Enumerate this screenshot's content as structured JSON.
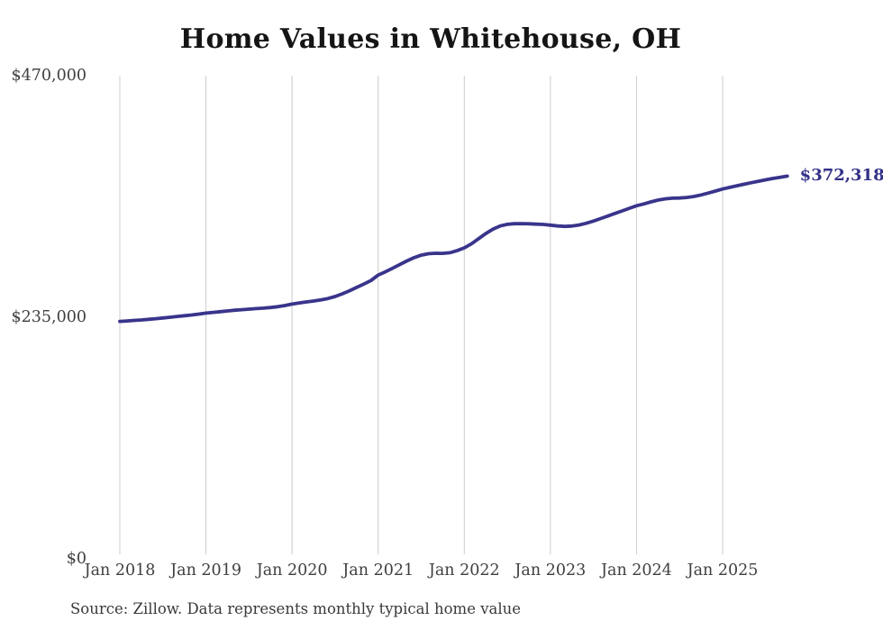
{
  "title": "Home Values in Whitehouse, OH",
  "end_value_label": "$372,318",
  "source_note": "Source: Zillow. Data represents monthly typical home value",
  "colors": {
    "background": "#ffffff",
    "title": "#151515",
    "axis_text": "#3f3f3f",
    "gridline": "#cccccc",
    "line": "#39348b",
    "end_label": "#333188",
    "source_text": "#3a3a3a"
  },
  "y_axis": {
    "min": 0,
    "max": 470000,
    "ticks": [
      {
        "label": "$470,000",
        "value": 470000
      },
      {
        "label": "$235,000",
        "value": 235000
      },
      {
        "label": "$0",
        "value": 0
      }
    ]
  },
  "x_axis": {
    "ticks": [
      "Jan 2018",
      "Jan 2019",
      "Jan 2020",
      "Jan 2021",
      "Jan 2022",
      "Jan 2023",
      "Jan 2024",
      "Jan 2025"
    ]
  },
  "chart_data": {
    "type": "line",
    "title": "Home Values in Whitehouse, OH",
    "xlabel": "",
    "ylabel": "",
    "ylim": [
      0,
      470000
    ],
    "grid": "vertical-only",
    "legend": "none",
    "x": [
      "Jan 2018",
      "Feb 2018",
      "Mar 2018",
      "Apr 2018",
      "May 2018",
      "Jun 2018",
      "Jul 2018",
      "Aug 2018",
      "Sep 2018",
      "Oct 2018",
      "Nov 2018",
      "Dec 2018",
      "Jan 2019",
      "Feb 2019",
      "Mar 2019",
      "Apr 2019",
      "May 2019",
      "Jun 2019",
      "Jul 2019",
      "Aug 2019",
      "Sep 2019",
      "Oct 2019",
      "Nov 2019",
      "Dec 2019",
      "Jan 2020",
      "Feb 2020",
      "Mar 2020",
      "Apr 2020",
      "May 2020",
      "Jun 2020",
      "Jul 2020",
      "Aug 2020",
      "Sep 2020",
      "Oct 2020",
      "Nov 2020",
      "Dec 2020",
      "Jan 2021",
      "Feb 2021",
      "Mar 2021",
      "Apr 2021",
      "May 2021",
      "Jun 2021",
      "Jul 2021",
      "Aug 2021",
      "Sep 2021",
      "Oct 2021",
      "Nov 2021",
      "Dec 2021",
      "Jan 2022",
      "Feb 2022",
      "Mar 2022",
      "Apr 2022",
      "May 2022",
      "Jun 2022",
      "Jul 2022",
      "Aug 2022",
      "Sep 2022",
      "Oct 2022",
      "Nov 2022",
      "Dec 2022",
      "Jan 2023",
      "Feb 2023",
      "Mar 2023",
      "Apr 2023",
      "May 2023",
      "Jun 2023",
      "Jul 2023",
      "Aug 2023",
      "Sep 2023",
      "Oct 2023",
      "Nov 2023",
      "Dec 2023",
      "Jan 2024",
      "Feb 2024",
      "Mar 2024",
      "Apr 2024",
      "May 2024",
      "Jun 2024",
      "Jul 2024",
      "Aug 2024",
      "Sep 2024",
      "Oct 2024",
      "Nov 2024",
      "Dec 2024",
      "Jan 2025",
      "Feb 2025",
      "Mar 2025",
      "Apr 2025",
      "May 2025",
      "Jun 2025",
      "Jul 2025",
      "Aug 2025",
      "Sep 2025",
      "Oct 2025"
    ],
    "series": [
      {
        "name": "Monthly typical home value",
        "color": "#39348b",
        "values": [
          231000,
          231400,
          231900,
          232400,
          233000,
          233600,
          234300,
          235000,
          235800,
          236500,
          237200,
          238100,
          239000,
          239700,
          240400,
          241100,
          241800,
          242400,
          242900,
          243400,
          243900,
          244500,
          245300,
          246400,
          247800,
          248900,
          249900,
          250800,
          251800,
          253200,
          255200,
          257800,
          260800,
          264000,
          267300,
          270800,
          276000,
          279200,
          282600,
          286200,
          289800,
          293000,
          295400,
          296800,
          297300,
          297200,
          297800,
          299800,
          302500,
          306500,
          311500,
          316500,
          320800,
          323800,
          325400,
          326000,
          326100,
          325900,
          325600,
          325300,
          324600,
          323800,
          323400,
          323700,
          324800,
          326500,
          328600,
          331000,
          333500,
          336000,
          338500,
          341000,
          343500,
          345200,
          347200,
          349000,
          350200,
          350800,
          351000,
          351500,
          352500,
          354000,
          355800,
          357800,
          359800,
          361400,
          362900,
          364400,
          365900,
          367300,
          368700,
          370000,
          371200,
          372318
        ]
      }
    ],
    "annotations": [
      {
        "text": "$372,318",
        "position": "line-end"
      }
    ]
  }
}
